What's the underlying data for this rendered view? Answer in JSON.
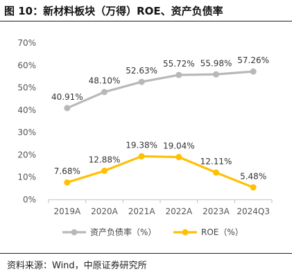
{
  "title": "图 10：新材料板块（万得）ROE、资产负债率",
  "source": "资料来源：Wind，中原证券研究所",
  "chart_data": {
    "type": "line",
    "categories": [
      "2019A",
      "2020A",
      "2021A",
      "2022A",
      "2023A",
      "2024Q3"
    ],
    "ylim": [
      0,
      70
    ],
    "yticks": [
      "0%",
      "10%",
      "20%",
      "30%",
      "40%",
      "50%",
      "60%",
      "70%"
    ],
    "grid": false,
    "legend_position": "bottom",
    "series": [
      {
        "name": "资产负债率（%）",
        "color": "#b8b8b8",
        "values": [
          40.91,
          48.1,
          52.63,
          55.72,
          55.98,
          57.26
        ],
        "labels": [
          "40.91%",
          "48.10%",
          "52.63%",
          "55.72%",
          "55.98%",
          "57.26%"
        ]
      },
      {
        "name": "ROE（%）",
        "color": "#ffc000",
        "values": [
          7.68,
          12.88,
          19.38,
          19.04,
          12.11,
          5.48
        ],
        "labels": [
          "7.68%",
          "12.88%",
          "19.38%",
          "19.04%",
          "12.11%",
          "5.48%"
        ]
      }
    ]
  }
}
